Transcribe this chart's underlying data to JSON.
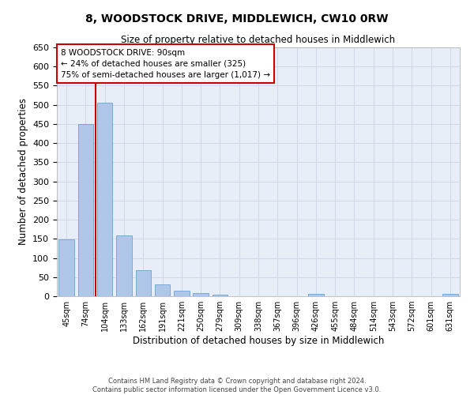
{
  "title": "8, WOODSTOCK DRIVE, MIDDLEWICH, CW10 0RW",
  "subtitle": "Size of property relative to detached houses in Middlewich",
  "xlabel": "Distribution of detached houses by size in Middlewich",
  "ylabel": "Number of detached properties",
  "categories": [
    "45sqm",
    "74sqm",
    "104sqm",
    "133sqm",
    "162sqm",
    "191sqm",
    "221sqm",
    "250sqm",
    "279sqm",
    "309sqm",
    "338sqm",
    "367sqm",
    "396sqm",
    "426sqm",
    "455sqm",
    "484sqm",
    "514sqm",
    "543sqm",
    "572sqm",
    "601sqm",
    "631sqm"
  ],
  "values": [
    148,
    449,
    506,
    158,
    68,
    30,
    14,
    9,
    5,
    0,
    0,
    0,
    0,
    6,
    0,
    0,
    0,
    0,
    0,
    0,
    6
  ],
  "bar_color": "#aec6e8",
  "bar_edge_color": "#5a96c8",
  "vline_color": "#cc0000",
  "vline_x_data": 1.5,
  "annotation_text": "8 WOODSTOCK DRIVE: 90sqm\n← 24% of detached houses are smaller (325)\n75% of semi-detached houses are larger (1,017) →",
  "annotation_box_color": "#ffffff",
  "annotation_box_edge_color": "#cc0000",
  "ylim": [
    0,
    650
  ],
  "yticks": [
    0,
    50,
    100,
    150,
    200,
    250,
    300,
    350,
    400,
    450,
    500,
    550,
    600,
    650
  ],
  "grid_color": "#d0d8e8",
  "background_color": "#e8eef8",
  "footer_line1": "Contains HM Land Registry data © Crown copyright and database right 2024.",
  "footer_line2": "Contains public sector information licensed under the Open Government Licence v3.0."
}
